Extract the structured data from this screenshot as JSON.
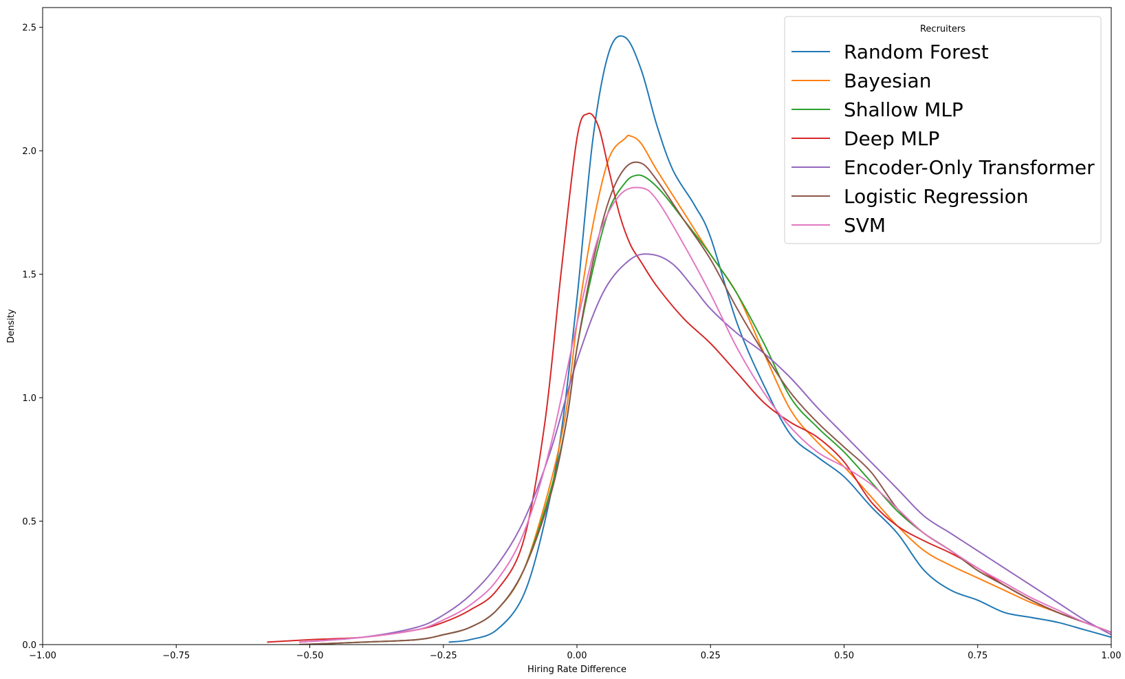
{
  "chart_data": {
    "type": "line",
    "xlabel": "Hiring Rate Difference",
    "ylabel": "Density",
    "xlim": [
      -1.0,
      1.0
    ],
    "ylim": [
      0,
      2.58
    ],
    "xticks": [
      -1.0,
      -0.75,
      -0.5,
      -0.25,
      0.0,
      0.25,
      0.5,
      0.75,
      1.0
    ],
    "xtick_labels": [
      "−1.00",
      "−0.75",
      "−0.50",
      "−0.25",
      "0.00",
      "0.25",
      "0.50",
      "0.75",
      "1.00"
    ],
    "yticks": [
      0.0,
      0.5,
      1.0,
      1.5,
      2.0,
      2.5
    ],
    "ytick_labels": [
      "0.0",
      "0.5",
      "1.0",
      "1.5",
      "2.0",
      "2.5"
    ],
    "grid": false,
    "legend": {
      "title": "Recruiters",
      "position": "top-right"
    },
    "series": [
      {
        "name": "Random Forest",
        "color": "#1f77b4",
        "x": [
          -0.24,
          -0.2,
          -0.15,
          -0.1,
          -0.06,
          -0.03,
          0.0,
          0.03,
          0.06,
          0.09,
          0.12,
          0.15,
          0.18,
          0.22,
          0.25,
          0.3,
          0.35,
          0.4,
          0.45,
          0.5,
          0.55,
          0.6,
          0.65,
          0.7,
          0.75,
          0.8,
          0.85,
          0.9,
          0.95,
          1.0
        ],
        "y": [
          0.01,
          0.02,
          0.06,
          0.2,
          0.5,
          0.85,
          1.4,
          2.05,
          2.4,
          2.46,
          2.33,
          2.1,
          1.92,
          1.78,
          1.65,
          1.3,
          1.05,
          0.85,
          0.76,
          0.68,
          0.56,
          0.45,
          0.3,
          0.22,
          0.18,
          0.13,
          0.11,
          0.09,
          0.06,
          0.03
        ]
      },
      {
        "name": "Bayesian",
        "color": "#ff7f0e",
        "x": [
          -0.52,
          -0.4,
          -0.3,
          -0.25,
          -0.2,
          -0.15,
          -0.1,
          -0.05,
          -0.02,
          0.0,
          0.03,
          0.06,
          0.09,
          0.1,
          0.12,
          0.15,
          0.2,
          0.25,
          0.3,
          0.35,
          0.4,
          0.45,
          0.5,
          0.55,
          0.6,
          0.65,
          0.7,
          0.75,
          0.8,
          0.85,
          0.9,
          0.95,
          1.0
        ],
        "y": [
          0.0,
          0.01,
          0.02,
          0.04,
          0.07,
          0.14,
          0.3,
          0.65,
          0.95,
          1.3,
          1.7,
          1.97,
          2.05,
          2.06,
          2.03,
          1.92,
          1.75,
          1.58,
          1.42,
          1.18,
          0.95,
          0.82,
          0.72,
          0.6,
          0.48,
          0.38,
          0.32,
          0.27,
          0.22,
          0.17,
          0.13,
          0.09,
          0.05
        ]
      },
      {
        "name": "Shallow MLP",
        "color": "#2ca02c",
        "x": [
          -0.52,
          -0.4,
          -0.3,
          -0.25,
          -0.2,
          -0.15,
          -0.1,
          -0.05,
          -0.02,
          0.0,
          0.03,
          0.06,
          0.09,
          0.11,
          0.13,
          0.16,
          0.2,
          0.25,
          0.3,
          0.35,
          0.4,
          0.45,
          0.5,
          0.55,
          0.6,
          0.65,
          0.7,
          0.75,
          0.8,
          0.85,
          0.9,
          0.95,
          1.0
        ],
        "y": [
          0.0,
          0.01,
          0.02,
          0.04,
          0.07,
          0.14,
          0.3,
          0.62,
          0.9,
          1.2,
          1.52,
          1.76,
          1.87,
          1.9,
          1.89,
          1.83,
          1.72,
          1.58,
          1.42,
          1.22,
          1.0,
          0.88,
          0.78,
          0.66,
          0.54,
          0.45,
          0.38,
          0.3,
          0.24,
          0.18,
          0.13,
          0.09,
          0.05
        ]
      },
      {
        "name": "Deep MLP",
        "color": "#d62728",
        "x": [
          -0.58,
          -0.5,
          -0.4,
          -0.3,
          -0.25,
          -0.2,
          -0.15,
          -0.1,
          -0.06,
          -0.03,
          0.0,
          0.02,
          0.04,
          0.06,
          0.08,
          0.1,
          0.12,
          0.15,
          0.2,
          0.25,
          0.3,
          0.35,
          0.4,
          0.45,
          0.5,
          0.55,
          0.6,
          0.65,
          0.7,
          0.75,
          0.8,
          0.85,
          0.9,
          0.95,
          1.0
        ],
        "y": [
          0.01,
          0.02,
          0.03,
          0.06,
          0.09,
          0.14,
          0.22,
          0.42,
          0.9,
          1.5,
          2.05,
          2.15,
          2.1,
          1.92,
          1.74,
          1.62,
          1.55,
          1.45,
          1.32,
          1.22,
          1.1,
          0.98,
          0.9,
          0.84,
          0.74,
          0.58,
          0.48,
          0.42,
          0.37,
          0.31,
          0.24,
          0.18,
          0.13,
          0.09,
          0.05
        ]
      },
      {
        "name": "Encoder-Only Transformer",
        "color": "#9467bd",
        "x": [
          -0.52,
          -0.4,
          -0.3,
          -0.25,
          -0.2,
          -0.15,
          -0.1,
          -0.05,
          0.0,
          0.05,
          0.1,
          0.14,
          0.18,
          0.22,
          0.25,
          0.3,
          0.35,
          0.4,
          0.45,
          0.5,
          0.55,
          0.6,
          0.65,
          0.7,
          0.75,
          0.8,
          0.85,
          0.9,
          0.95,
          1.0
        ],
        "y": [
          0.01,
          0.03,
          0.07,
          0.12,
          0.2,
          0.32,
          0.5,
          0.78,
          1.15,
          1.43,
          1.56,
          1.58,
          1.54,
          1.44,
          1.36,
          1.26,
          1.18,
          1.08,
          0.96,
          0.85,
          0.74,
          0.63,
          0.52,
          0.45,
          0.38,
          0.31,
          0.24,
          0.17,
          0.1,
          0.04
        ]
      },
      {
        "name": "Logistic Regression",
        "color": "#8c564b",
        "x": [
          -0.52,
          -0.4,
          -0.3,
          -0.25,
          -0.2,
          -0.15,
          -0.1,
          -0.05,
          -0.02,
          0.0,
          0.03,
          0.06,
          0.09,
          0.12,
          0.15,
          0.2,
          0.25,
          0.3,
          0.35,
          0.4,
          0.45,
          0.5,
          0.55,
          0.6,
          0.65,
          0.7,
          0.75,
          0.8,
          0.85,
          0.9,
          0.95,
          1.0
        ],
        "y": [
          0.0,
          0.01,
          0.02,
          0.04,
          0.07,
          0.14,
          0.3,
          0.6,
          0.9,
          1.2,
          1.55,
          1.8,
          1.93,
          1.95,
          1.88,
          1.72,
          1.56,
          1.36,
          1.18,
          1.02,
          0.9,
          0.8,
          0.7,
          0.55,
          0.45,
          0.38,
          0.3,
          0.24,
          0.18,
          0.13,
          0.09,
          0.05
        ]
      },
      {
        "name": "SVM",
        "color": "#e377c2",
        "x": [
          -0.52,
          -0.4,
          -0.3,
          -0.25,
          -0.2,
          -0.15,
          -0.1,
          -0.05,
          0.0,
          0.04,
          0.08,
          0.12,
          0.15,
          0.2,
          0.25,
          0.3,
          0.35,
          0.4,
          0.45,
          0.5,
          0.55,
          0.6,
          0.65,
          0.7,
          0.75,
          0.8,
          0.85,
          0.9,
          0.95,
          1.0
        ],
        "y": [
          0.01,
          0.03,
          0.06,
          0.1,
          0.16,
          0.26,
          0.45,
          0.8,
          1.3,
          1.65,
          1.82,
          1.85,
          1.8,
          1.62,
          1.42,
          1.2,
          1.02,
          0.88,
          0.78,
          0.72,
          0.65,
          0.55,
          0.45,
          0.38,
          0.31,
          0.25,
          0.19,
          0.14,
          0.09,
          0.05
        ]
      }
    ]
  }
}
